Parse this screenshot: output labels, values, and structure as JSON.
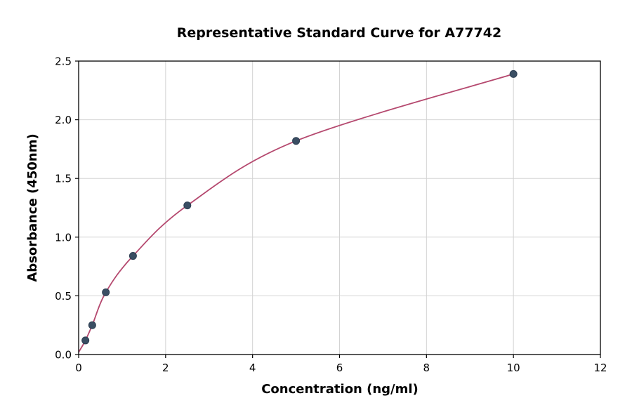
{
  "chart_data": {
    "type": "scatter",
    "title": "Representative Standard Curve for A77742",
    "xlabel": "Concentration (ng/ml)",
    "ylabel": "Absorbance (450nm)",
    "xlim": [
      0,
      12
    ],
    "ylim": [
      0,
      2.5
    ],
    "grid": true,
    "legend": "none",
    "x_ticks": [
      0,
      2,
      4,
      6,
      8,
      10,
      12
    ],
    "x_tick_labels": [
      "0",
      "2",
      "4",
      "6",
      "8",
      "10",
      "12"
    ],
    "y_ticks": [
      0,
      0.5,
      1.0,
      1.5,
      2.0,
      2.5
    ],
    "y_tick_labels": [
      "0.0",
      "0.5",
      "1.0",
      "1.5",
      "2.0",
      "2.5"
    ],
    "points": {
      "x": [
        0.156,
        0.3125,
        0.625,
        1.25,
        2.5,
        5,
        10
      ],
      "y": [
        0.12,
        0.25,
        0.53,
        0.84,
        1.27,
        1.82,
        2.39
      ]
    },
    "curve": {
      "anchors_x": [
        0,
        0.156,
        0.3125,
        0.625,
        1.25,
        2.5,
        5,
        10
      ],
      "anchors_y": [
        0.02,
        0.12,
        0.25,
        0.53,
        0.84,
        1.27,
        1.82,
        2.39
      ]
    },
    "colors": {
      "curve": "#b5496f",
      "points": "#3a4e63",
      "points_edge": "#2d3e52",
      "grid": "#d3d3d3",
      "axis": "#000000",
      "background": "#ffffff"
    }
  }
}
